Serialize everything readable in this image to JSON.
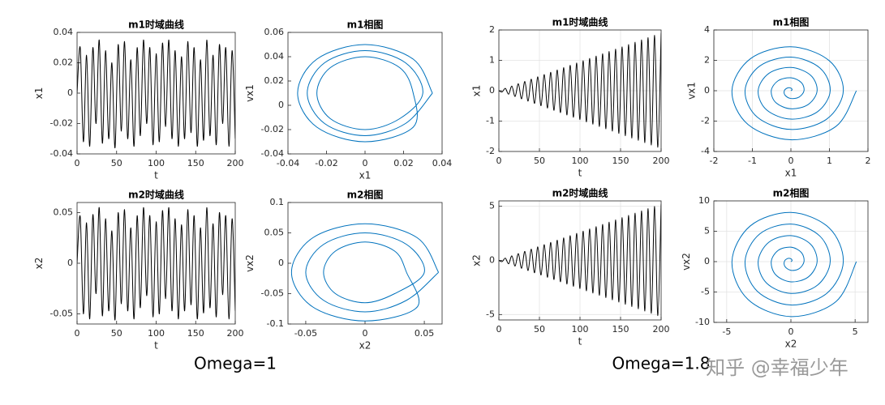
{
  "chart_data": [
    {
      "type": "line",
      "title": "m1时域曲线",
      "x_label": "t",
      "y_label": "x1",
      "color": "#000000",
      "grid": false,
      "xlim": [
        0,
        200
      ],
      "xticks": [
        0,
        50,
        100,
        150,
        200
      ],
      "ylim": [
        -0.04,
        0.04
      ],
      "yticks": [
        -0.04,
        -0.02,
        0,
        0.02,
        0.04
      ],
      "x": [
        0,
        4,
        8,
        12,
        16,
        20,
        24,
        28,
        32,
        36,
        40,
        44,
        48,
        52,
        56,
        60,
        64,
        68,
        72,
        76,
        80,
        84,
        88,
        92,
        96,
        100,
        104,
        108,
        112,
        116,
        120,
        124,
        128,
        132,
        136,
        140,
        144,
        148,
        152,
        156,
        160,
        164,
        168,
        172,
        176,
        180,
        184,
        188,
        192,
        196,
        200
      ],
      "values": [
        0,
        0.03,
        -0.032,
        0.025,
        -0.035,
        0.03,
        -0.02,
        0.035,
        -0.033,
        0.028,
        -0.03,
        0.02,
        -0.036,
        0.032,
        -0.025,
        0.034,
        -0.03,
        0.022,
        -0.035,
        0.03,
        -0.028,
        0.035,
        -0.02,
        0.03,
        -0.034,
        0.026,
        -0.032,
        0.033,
        -0.022,
        0.035,
        -0.03,
        0.028,
        -0.035,
        0.024,
        -0.03,
        0.034,
        -0.026,
        0.03,
        -0.035,
        0.022,
        -0.031,
        0.035,
        -0.028,
        0.025,
        -0.034,
        0.032,
        -0.02,
        0.03,
        -0.035,
        0.028,
        -0.03
      ]
    },
    {
      "type": "line",
      "title": "m1相图",
      "x_label": "x1",
      "y_label": "vx1",
      "color": "#0072bd",
      "grid": false,
      "xlim": [
        -0.04,
        0.04
      ],
      "xticks": [
        -0.04,
        -0.02,
        0,
        0.02,
        0.04
      ],
      "ylim": [
        -0.04,
        0.06
      ],
      "yticks": [
        -0.04,
        -0.02,
        0,
        0.02,
        0.04,
        0.06
      ],
      "x": [
        0.035,
        0.025,
        0,
        -0.025,
        -0.035,
        -0.025,
        0,
        0.025,
        0.025,
        0.018,
        0,
        -0.018,
        -0.025,
        -0.018,
        0,
        0.018,
        0.03,
        0.021,
        0,
        -0.021,
        -0.03,
        -0.021,
        0,
        0.021,
        0.035
      ],
      "values": [
        0.01,
        0.038,
        0.05,
        0.038,
        0.01,
        -0.018,
        -0.03,
        -0.018,
        0.01,
        0.031,
        0.04,
        0.031,
        0.01,
        -0.011,
        -0.02,
        -0.011,
        0.01,
        0.035,
        0.045,
        0.035,
        0.01,
        -0.015,
        -0.025,
        -0.015,
        0.01
      ]
    },
    {
      "type": "line",
      "title": "m1时域曲线",
      "x_label": "t",
      "y_label": "x1",
      "color": "#000000",
      "grid": true,
      "xlim": [
        0,
        200
      ],
      "xticks": [
        0,
        50,
        100,
        150,
        200
      ],
      "ylim": [
        -2,
        2
      ],
      "yticks": [
        -2,
        -1,
        0,
        1,
        2
      ],
      "x": [
        0,
        4,
        8,
        12,
        16,
        20,
        24,
        28,
        32,
        36,
        40,
        44,
        48,
        52,
        56,
        60,
        64,
        68,
        72,
        76,
        80,
        84,
        88,
        92,
        96,
        100,
        104,
        108,
        112,
        116,
        120,
        124,
        128,
        132,
        136,
        140,
        144,
        148,
        152,
        156,
        160,
        164,
        168,
        172,
        176,
        180,
        184,
        188,
        192,
        196,
        200
      ],
      "values": [
        0,
        -0.038,
        0.076,
        -0.114,
        0.152,
        -0.19,
        0.228,
        -0.266,
        0.304,
        -0.342,
        0.38,
        -0.418,
        0.456,
        -0.494,
        0.532,
        -0.57,
        0.608,
        -0.646,
        0.684,
        -0.722,
        0.76,
        -0.798,
        0.836,
        -0.874,
        0.912,
        -0.95,
        0.988,
        -1.026,
        1.064,
        -1.102,
        1.14,
        -1.178,
        1.216,
        -1.254,
        1.292,
        -1.33,
        1.368,
        -1.406,
        1.444,
        -1.482,
        1.52,
        -1.558,
        1.596,
        -1.634,
        1.672,
        -1.71,
        1.748,
        -1.786,
        1.824,
        -1.862,
        1.9
      ]
    },
    {
      "type": "line",
      "title": "m1相图",
      "x_label": "x1",
      "y_label": "vx1",
      "color": "#0072bd",
      "grid": true,
      "xlim": [
        -2,
        2
      ],
      "xticks": [
        -2,
        -1,
        0,
        1,
        2
      ],
      "ylim": [
        -4,
        4
      ],
      "yticks": [
        -4,
        -2,
        0,
        2,
        4
      ],
      "x": [
        0,
        0.03,
        0,
        -0.09,
        -0.17,
        -0.15,
        0,
        0.21,
        0.34,
        0.27,
        0,
        -0.331,
        -0.51,
        -0.391,
        0,
        0.451,
        0.68,
        0.511,
        0,
        -0.571,
        -0.85,
        -0.631,
        0,
        0.691,
        1.02,
        0.751,
        0,
        -0.811,
        -1.19,
        -0.872,
        0,
        0.932,
        1.36,
        0.992,
        0,
        -1.052,
        -1.53,
        -1.112,
        0,
        1.172,
        1.7
      ],
      "values": [
        0,
        0.06,
        0.17,
        0.18,
        0,
        -0.3,
        -0.51,
        -0.421,
        0,
        0.541,
        0.85,
        0.661,
        0,
        -0.781,
        -1.19,
        -0.902,
        0,
        1.022,
        1.53,
        1.142,
        0,
        -1.262,
        -1.87,
        -1.382,
        0,
        1.503,
        2.21,
        1.623,
        0,
        -1.743,
        -2.55,
        -1.863,
        0,
        1.983,
        2.89,
        2.104,
        0,
        -2.224,
        -3.23,
        -2.344,
        0
      ]
    },
    {
      "type": "line",
      "title": "m2时域曲线",
      "x_label": "t",
      "y_label": "x2",
      "color": "#000000",
      "grid": false,
      "xlim": [
        0,
        200
      ],
      "xticks": [
        0,
        50,
        100,
        150,
        200
      ],
      "ylim": [
        -0.06,
        0.06
      ],
      "yticks": [
        -0.05,
        0,
        0.05
      ],
      "x": [
        0,
        4,
        8,
        12,
        16,
        20,
        24,
        28,
        32,
        36,
        40,
        44,
        48,
        52,
        56,
        60,
        64,
        68,
        72,
        76,
        80,
        84,
        88,
        92,
        96,
        100,
        104,
        108,
        112,
        116,
        120,
        124,
        128,
        132,
        136,
        140,
        144,
        148,
        152,
        156,
        160,
        164,
        168,
        172,
        176,
        180,
        184,
        188,
        192,
        196,
        200
      ],
      "values": [
        0,
        0.046,
        -0.05,
        0.04,
        -0.055,
        0.048,
        -0.03,
        0.055,
        -0.052,
        0.044,
        -0.047,
        0.032,
        -0.056,
        0.05,
        -0.04,
        0.053,
        -0.047,
        0.035,
        -0.055,
        0.047,
        -0.044,
        0.055,
        -0.032,
        0.047,
        -0.053,
        0.041,
        -0.05,
        0.052,
        -0.035,
        0.055,
        -0.047,
        0.044,
        -0.055,
        0.038,
        -0.047,
        0.053,
        -0.041,
        0.047,
        -0.055,
        0.035,
        -0.049,
        0.055,
        -0.044,
        0.039,
        -0.053,
        0.05,
        -0.031,
        0.047,
        -0.055,
        0.044,
        -0.047
      ]
    },
    {
      "type": "line",
      "title": "m2相图",
      "x_label": "x2",
      "y_label": "vx2",
      "color": "#0072bd",
      "grid": false,
      "xlim": [
        -0.065,
        0.065
      ],
      "xticks": [
        -0.05,
        0,
        0.05
      ],
      "ylim": [
        -0.1,
        0.1
      ],
      "yticks": [
        -0.1,
        -0.05,
        0,
        0.05,
        0.1
      ],
      "x": [
        0.062,
        0.044,
        0,
        -0.044,
        -0.062,
        -0.044,
        0,
        0.044,
        0.035,
        0.025,
        0,
        -0.025,
        -0.035,
        -0.025,
        0,
        0.025,
        0.05,
        0.035,
        0,
        -0.035,
        -0.05,
        -0.035,
        0,
        0.035,
        0.062
      ],
      "values": [
        -0.015,
        0.042,
        0.065,
        0.042,
        -0.015,
        -0.072,
        -0.095,
        -0.072,
        -0.015,
        0.02,
        0.035,
        0.02,
        -0.015,
        -0.05,
        -0.065,
        -0.05,
        -0.015,
        0.031,
        0.05,
        0.031,
        -0.015,
        -0.061,
        -0.08,
        -0.061,
        -0.015
      ]
    },
    {
      "type": "line",
      "title": "m2时域曲线",
      "x_label": "t",
      "y_label": "x2",
      "color": "#000000",
      "grid": true,
      "xlim": [
        0,
        200
      ],
      "xticks": [
        0,
        50,
        100,
        150,
        200
      ],
      "ylim": [
        -5.5,
        5.5
      ],
      "yticks": [
        -5,
        0,
        5
      ],
      "x": [
        0,
        4,
        8,
        12,
        16,
        20,
        24,
        28,
        32,
        36,
        40,
        44,
        48,
        52,
        56,
        60,
        64,
        68,
        72,
        76,
        80,
        84,
        88,
        92,
        96,
        100,
        104,
        108,
        112,
        116,
        120,
        124,
        128,
        132,
        136,
        140,
        144,
        148,
        152,
        156,
        160,
        164,
        168,
        172,
        176,
        180,
        184,
        188,
        192,
        196,
        200
      ],
      "values": [
        0,
        -0.104,
        0.208,
        -0.312,
        0.416,
        -0.52,
        0.624,
        -0.728,
        0.832,
        -0.936,
        1.04,
        -1.144,
        1.248,
        -1.352,
        1.456,
        -1.56,
        1.664,
        -1.768,
        1.872,
        -1.976,
        2.08,
        -2.184,
        2.288,
        -2.392,
        2.496,
        -2.6,
        2.704,
        -2.808,
        2.912,
        -3.016,
        3.12,
        -3.224,
        3.328,
        -3.432,
        3.536,
        -3.64,
        3.744,
        -3.848,
        3.952,
        -4.056,
        4.16,
        -4.264,
        4.368,
        -4.472,
        4.576,
        -4.68,
        4.784,
        -4.888,
        4.992,
        -5.096,
        5.2
      ]
    },
    {
      "type": "line",
      "title": "m2相图",
      "x_label": "x2",
      "y_label": "vx2",
      "color": "#0072bd",
      "grid": true,
      "xlim": [
        -6,
        6
      ],
      "xticks": [
        -5,
        0,
        5
      ],
      "ylim": [
        -10,
        10
      ],
      "yticks": [
        -10,
        -5,
        0,
        5,
        10
      ],
      "x": [
        0,
        0.09,
        0,
        -0.27,
        -0.51,
        -0.45,
        0,
        0.63,
        1.02,
        0.81,
        0,
        -0.993,
        -1.53,
        -1.173,
        0,
        1.353,
        2.04,
        1.533,
        0,
        -1.713,
        -2.55,
        -1.893,
        0,
        2.073,
        3.06,
        2.253,
        0,
        -2.433,
        -3.57,
        -2.616,
        0,
        2.796,
        4.08,
        2.976,
        0,
        -3.156,
        -4.59,
        -3.336,
        0,
        3.516,
        5.1
      ],
      "values": [
        0,
        0.168,
        0.476,
        0.504,
        0,
        -0.84,
        -1.428,
        -1.179,
        0,
        1.515,
        2.38,
        1.851,
        0,
        -2.187,
        -3.332,
        -2.526,
        0,
        2.862,
        4.284,
        3.198,
        0,
        -3.534,
        -5.236,
        -3.87,
        0,
        4.208,
        6.188,
        4.544,
        0,
        -4.88,
        -7.14,
        -5.216,
        0,
        5.552,
        8.092,
        5.891,
        0,
        -6.227,
        -9.044,
        -6.563,
        0
      ]
    }
  ],
  "captions": [
    "Omega=1",
    "Omega=1.8"
  ],
  "watermark": "知乎 @幸福少年"
}
